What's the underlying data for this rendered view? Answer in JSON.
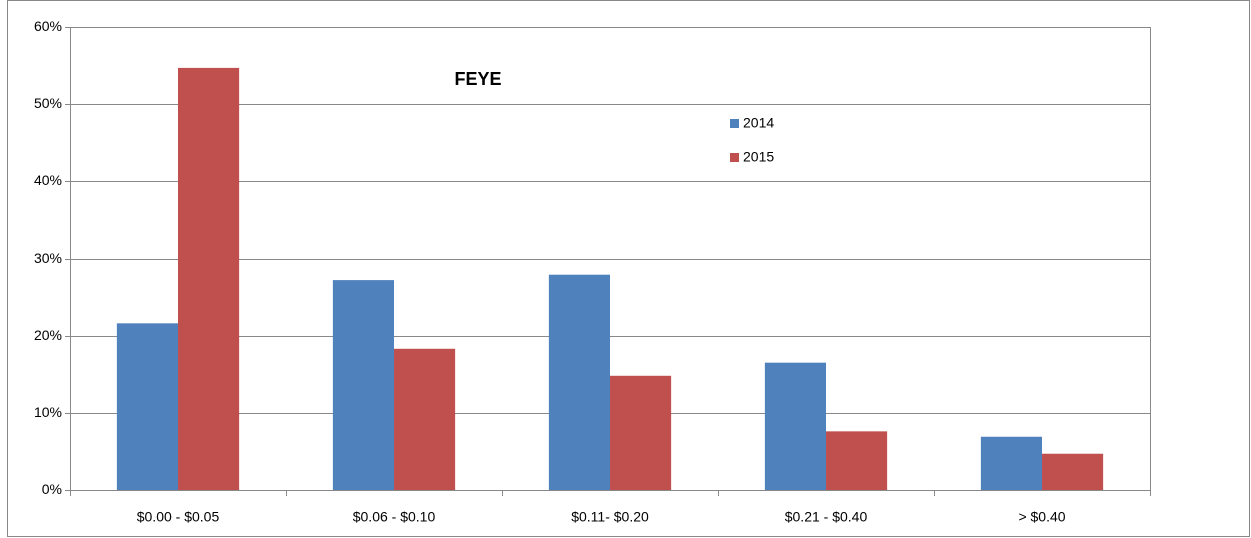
{
  "chart_data": {
    "type": "bar",
    "title": "FEYE",
    "categories": [
      "$0.00 - $0.05",
      "$0.06 - $0.10",
      "$0.11- $0.20",
      "$0.21 - $0.40",
      "> $0.40"
    ],
    "series": [
      {
        "name": "2014",
        "color": "#4f81bd",
        "values": [
          21.6,
          27.2,
          27.9,
          16.5,
          6.9
        ]
      },
      {
        "name": "2015",
        "color": "#c0504d",
        "values": [
          54.7,
          18.3,
          14.8,
          7.6,
          4.7
        ]
      }
    ],
    "ylim": [
      0,
      60
    ],
    "yticks": [
      {
        "value": 0,
        "label": "0%"
      },
      {
        "value": 10,
        "label": "10%"
      },
      {
        "value": 20,
        "label": "20%"
      },
      {
        "value": 30,
        "label": "30%"
      },
      {
        "value": 40,
        "label": "40%"
      },
      {
        "value": 50,
        "label": "50%"
      },
      {
        "value": 60,
        "label": "60%"
      }
    ],
    "grid": true,
    "legend": "upper-right"
  }
}
